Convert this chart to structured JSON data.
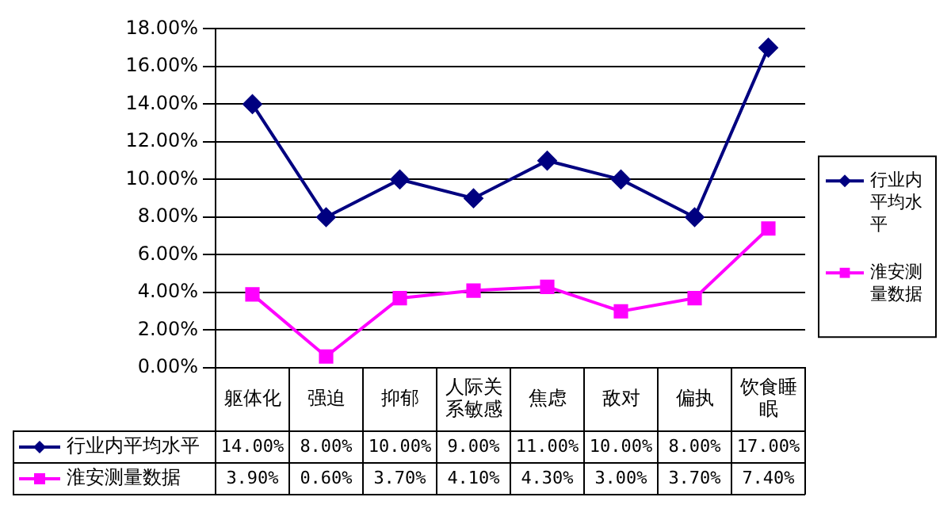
{
  "chart_data": {
    "type": "line",
    "categories": [
      "躯体化",
      "强迫",
      "抑郁",
      "人际关系敏感",
      "焦虑",
      "敌对",
      "偏执",
      "饮食睡眠"
    ],
    "series": [
      {
        "name": "行业内平均水平",
        "color": "#000080",
        "marker": "diamond",
        "values": [
          14,
          8,
          10,
          9,
          11,
          10,
          8,
          17
        ],
        "value_labels": [
          "14.00%",
          "8.00%",
          "10.00%",
          "9.00%",
          "11.00%",
          "10.00%",
          "8.00%",
          "17.00%"
        ]
      },
      {
        "name": "淮安测量数据",
        "color": "#ff00ff",
        "marker": "square",
        "values": [
          3.9,
          0.6,
          3.7,
          4.1,
          4.3,
          3.0,
          3.7,
          7.4
        ],
        "value_labels": [
          "3.90%",
          "0.60%",
          "3.70%",
          "4.10%",
          "4.30%",
          "3.00%",
          "3.70%",
          "7.40%"
        ]
      }
    ],
    "ylim": [
      0,
      18
    ],
    "yticks": [
      {
        "value": 0,
        "label": "0.00%"
      },
      {
        "value": 2,
        "label": "2.00%"
      },
      {
        "value": 4,
        "label": "4.00%"
      },
      {
        "value": 6,
        "label": "6.00%"
      },
      {
        "value": 8,
        "label": "8.00%"
      },
      {
        "value": 10,
        "label": "10.00%"
      },
      {
        "value": 12,
        "label": "12.00%"
      },
      {
        "value": 14,
        "label": "14.00%"
      },
      {
        "value": 16,
        "label": "16.00%"
      },
      {
        "value": 18,
        "label": "18.00%"
      }
    ],
    "grid": "y",
    "legend": "right"
  }
}
